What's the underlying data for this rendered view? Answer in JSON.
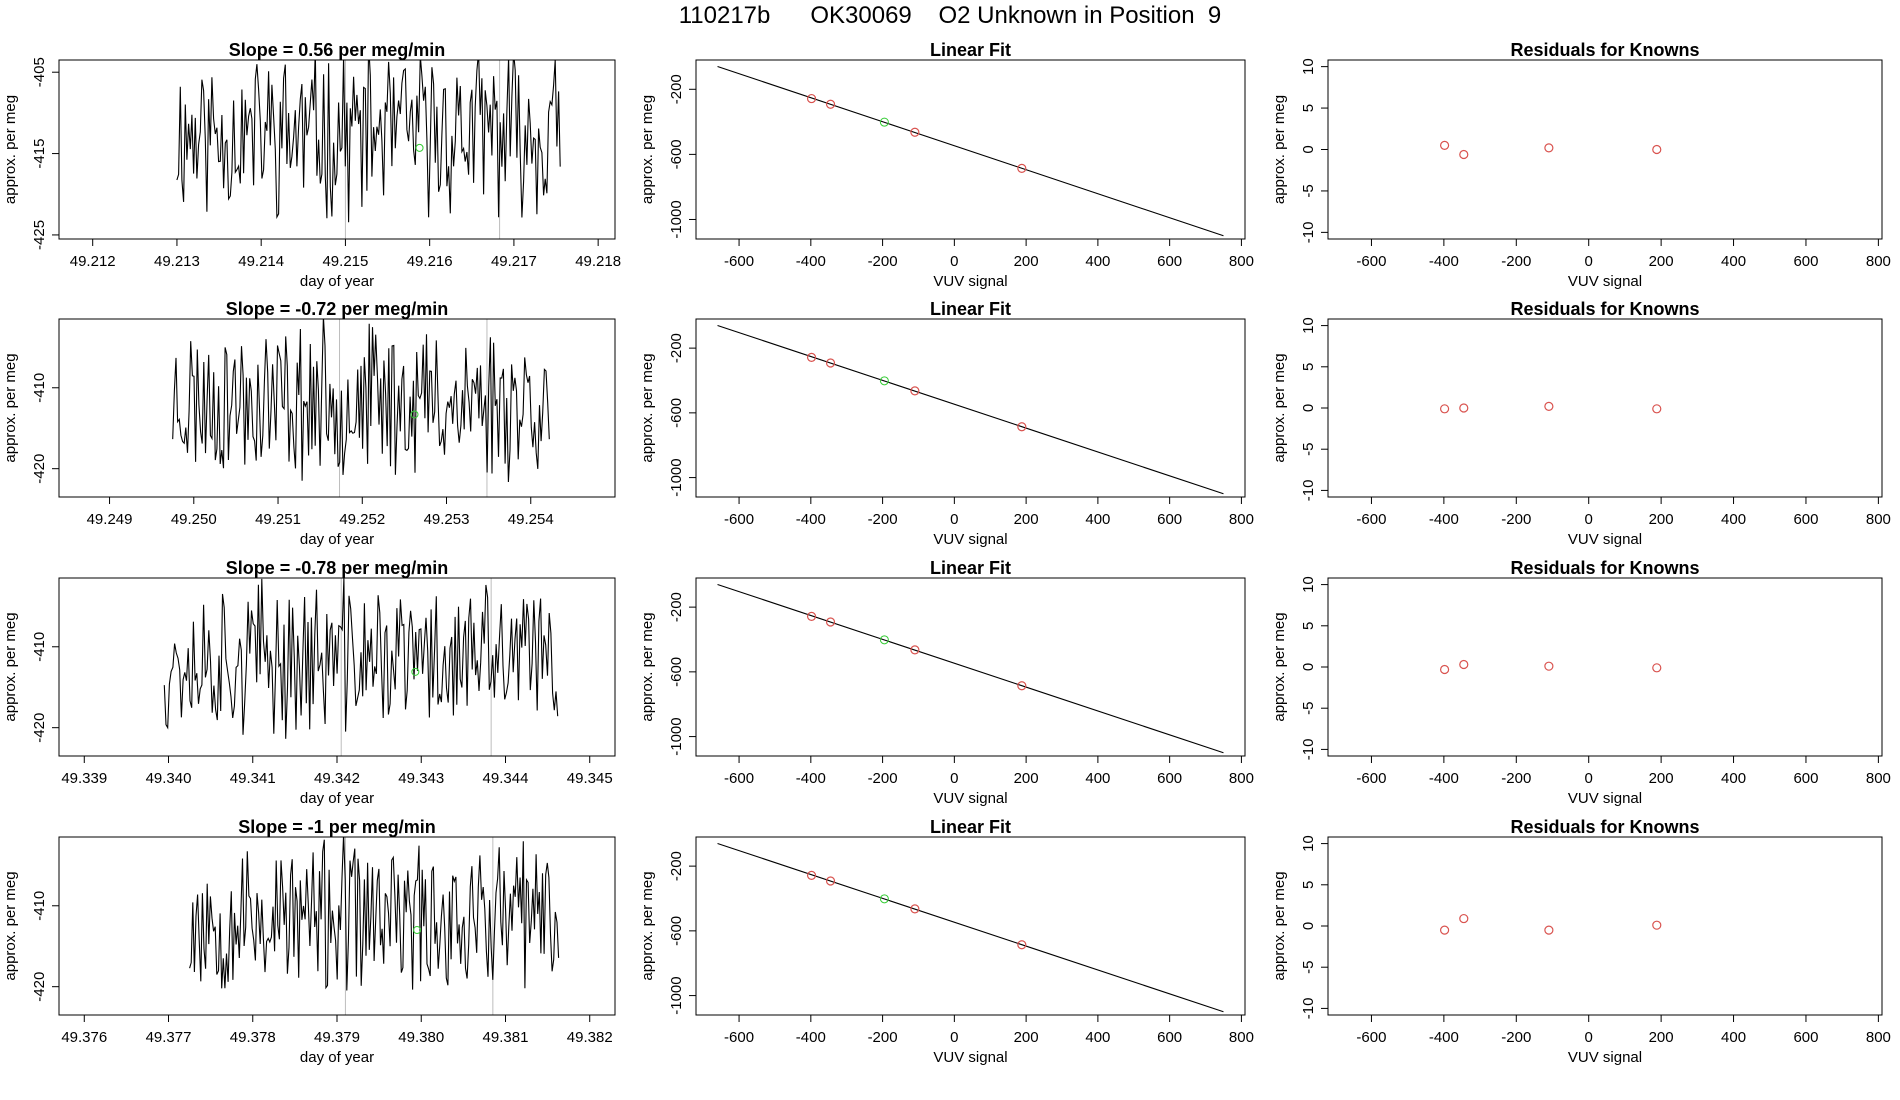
{
  "page_title": "110217b      OK30069    O2 Unknown in Position  9",
  "chart_data": [
    {
      "type": "line",
      "title": "Slope =  0.56  per meg/min",
      "xlabel": "day of year",
      "ylabel": "approx. per meg",
      "xlim": [
        49.2116,
        49.2182
      ],
      "ylim": [
        -425.5,
        -403.5
      ],
      "xticks": [
        "49.212",
        "49.213",
        "49.214",
        "49.215",
        "49.216",
        "49.217",
        "49.218"
      ],
      "yticks": [
        "-405",
        "-415",
        "-425"
      ],
      "ytick_values": [
        -405,
        -415,
        -425
      ],
      "vlines": [
        49.215,
        49.21683
      ],
      "marker": {
        "x": 49.21588,
        "y": -414.3,
        "color": "#33cc33"
      },
      "series": {
        "x_start": 49.213,
        "x_end": 49.21755,
        "seed": 11,
        "mean": -412.5,
        "amp": 8.5
      }
    },
    {
      "type": "scatter",
      "title": "Linear Fit",
      "xlabel": "VUV signal",
      "ylabel": "approx. per meg",
      "xlim": [
        -720,
        810
      ],
      "ylim": [
        -1120,
        -20
      ],
      "xticks": [
        "-600",
        "-400",
        "-200",
        "0",
        "200",
        "400",
        "600",
        "800"
      ],
      "xtick_values": [
        -600,
        -400,
        -200,
        0,
        200,
        400,
        600,
        800
      ],
      "yticks": [
        "-200",
        "-600",
        "-1000"
      ],
      "ytick_values": [
        -200,
        -600,
        -1000
      ],
      "fit_line": {
        "x": [
          -660,
          750
        ],
        "y": [
          -60,
          -1100
        ]
      },
      "points": [
        {
          "x": -398,
          "y": -257
        },
        {
          "x": -345,
          "y": -292
        },
        {
          "x": -110,
          "y": -464
        },
        {
          "x": 188,
          "y": -686
        }
      ],
      "unknown": {
        "x": -195,
        "y": -402
      }
    },
    {
      "type": "scatter",
      "title": "Residuals for Knowns",
      "xlabel": "VUV signal",
      "ylabel": "approx. per meg",
      "xlim": [
        -720,
        810
      ],
      "ylim": [
        -10.8,
        10.8
      ],
      "xticks": [
        "-600",
        "-400",
        "-200",
        "0",
        "200",
        "400",
        "600",
        "800"
      ],
      "xtick_values": [
        -600,
        -400,
        -200,
        0,
        200,
        400,
        600,
        800
      ],
      "yticks": [
        "10",
        "5",
        "0",
        "-5",
        "-10"
      ],
      "ytick_values": [
        10,
        5,
        0,
        -5,
        -10
      ],
      "points": [
        {
          "x": -398,
          "y": 0.5
        },
        {
          "x": -345,
          "y": -0.6
        },
        {
          "x": -110,
          "y": 0.2
        },
        {
          "x": 188,
          "y": 0.0
        }
      ]
    },
    {
      "type": "line",
      "title": "Slope =  -0.72  per meg/min",
      "xlabel": "day of year",
      "ylabel": "approx. per meg",
      "xlim": [
        49.2484,
        49.255
      ],
      "ylim": [
        -423.5,
        -401.5
      ],
      "xticks": [
        "49.249",
        "49.250",
        "49.251",
        "49.252",
        "49.253",
        "49.254"
      ],
      "yticks": [
        "-410",
        "-420"
      ],
      "ytick_values": [
        -410,
        -420
      ],
      "vlines": [
        49.25173,
        49.25348
      ],
      "marker": {
        "x": 49.25262,
        "y": -413.3,
        "color": "#33cc33"
      },
      "series": {
        "x_start": 49.24975,
        "x_end": 49.25422,
        "seed": 23,
        "mean": -411.5,
        "amp": 8.0
      }
    },
    {
      "type": "scatter",
      "title": "Linear Fit",
      "xlabel": "VUV signal",
      "ylabel": "approx. per meg",
      "xlim": [
        -720,
        810
      ],
      "ylim": [
        -1120,
        -20
      ],
      "xticks": [
        "-600",
        "-400",
        "-200",
        "0",
        "200",
        "400",
        "600",
        "800"
      ],
      "xtick_values": [
        -600,
        -400,
        -200,
        0,
        200,
        400,
        600,
        800
      ],
      "yticks": [
        "-200",
        "-600",
        "-1000"
      ],
      "ytick_values": [
        -200,
        -600,
        -1000
      ],
      "fit_line": {
        "x": [
          -660,
          750
        ],
        "y": [
          -60,
          -1100
        ]
      },
      "points": [
        {
          "x": -398,
          "y": -257
        },
        {
          "x": -345,
          "y": -292
        },
        {
          "x": -110,
          "y": -464
        },
        {
          "x": 188,
          "y": -686
        }
      ],
      "unknown": {
        "x": -195,
        "y": -402
      }
    },
    {
      "type": "scatter",
      "title": "Residuals for Knowns",
      "xlabel": "VUV signal",
      "ylabel": "approx. per meg",
      "xlim": [
        -720,
        810
      ],
      "ylim": [
        -10.8,
        10.8
      ],
      "xticks": [
        "-600",
        "-400",
        "-200",
        "0",
        "200",
        "400",
        "600",
        "800"
      ],
      "xtick_values": [
        -600,
        -400,
        -200,
        0,
        200,
        400,
        600,
        800
      ],
      "yticks": [
        "10",
        "5",
        "0",
        "-5",
        "-10"
      ],
      "ytick_values": [
        10,
        5,
        0,
        -5,
        -10
      ],
      "points": [
        {
          "x": -398,
          "y": -0.1
        },
        {
          "x": -345,
          "y": 0.0
        },
        {
          "x": -110,
          "y": 0.2
        },
        {
          "x": 188,
          "y": -0.1
        }
      ]
    },
    {
      "type": "line",
      "title": "Slope =  -0.78  per meg/min",
      "xlabel": "day of year",
      "ylabel": "approx. per meg",
      "xlim": [
        49.3387,
        49.3453
      ],
      "ylim": [
        -423.5,
        -401.5
      ],
      "xticks": [
        "49.339",
        "49.340",
        "49.341",
        "49.342",
        "49.343",
        "49.344",
        "49.345"
      ],
      "yticks": [
        "-410",
        "-420"
      ],
      "ytick_values": [
        -410,
        -420
      ],
      "vlines": [
        49.34205,
        49.34383
      ],
      "marker": {
        "x": 49.34293,
        "y": -413.1,
        "color": "#33cc33"
      },
      "series": {
        "x_start": 49.33995,
        "x_end": 49.34462,
        "seed": 37,
        "mean": -411.5,
        "amp": 8.0
      }
    },
    {
      "type": "scatter",
      "title": "Linear Fit",
      "xlabel": "VUV signal",
      "ylabel": "approx. per meg",
      "xlim": [
        -720,
        810
      ],
      "ylim": [
        -1120,
        -20
      ],
      "xticks": [
        "-600",
        "-400",
        "-200",
        "0",
        "200",
        "400",
        "600",
        "800"
      ],
      "xtick_values": [
        -600,
        -400,
        -200,
        0,
        200,
        400,
        600,
        800
      ],
      "yticks": [
        "-200",
        "-600",
        "-1000"
      ],
      "ytick_values": [
        -200,
        -600,
        -1000
      ],
      "fit_line": {
        "x": [
          -660,
          750
        ],
        "y": [
          -60,
          -1100
        ]
      },
      "points": [
        {
          "x": -398,
          "y": -257
        },
        {
          "x": -345,
          "y": -292
        },
        {
          "x": -110,
          "y": -464
        },
        {
          "x": 188,
          "y": -686
        }
      ],
      "unknown": {
        "x": -195,
        "y": -402
      }
    },
    {
      "type": "scatter",
      "title": "Residuals for Knowns",
      "xlabel": "VUV signal",
      "ylabel": "approx. per meg",
      "xlim": [
        -720,
        810
      ],
      "ylim": [
        -10.8,
        10.8
      ],
      "xticks": [
        "-600",
        "-400",
        "-200",
        "0",
        "200",
        "400",
        "600",
        "800"
      ],
      "xtick_values": [
        -600,
        -400,
        -200,
        0,
        200,
        400,
        600,
        800
      ],
      "yticks": [
        "10",
        "5",
        "0",
        "-5",
        "-10"
      ],
      "ytick_values": [
        10,
        5,
        0,
        -5,
        -10
      ],
      "points": [
        {
          "x": -398,
          "y": -0.3
        },
        {
          "x": -345,
          "y": 0.3
        },
        {
          "x": -110,
          "y": 0.1
        },
        {
          "x": 188,
          "y": -0.1
        }
      ]
    },
    {
      "type": "line",
      "title": "Slope =  -1  per meg/min",
      "xlabel": "day of year",
      "ylabel": "approx. per meg",
      "xlim": [
        49.3757,
        49.3823
      ],
      "ylim": [
        -423.5,
        -401.5
      ],
      "xticks": [
        "49.376",
        "49.377",
        "49.378",
        "49.379",
        "49.380",
        "49.381",
        "49.382"
      ],
      "yticks": [
        "-410",
        "-420"
      ],
      "ytick_values": [
        -410,
        -420
      ],
      "vlines": [
        49.3791,
        49.38085
      ],
      "marker": {
        "x": 49.37995,
        "y": -413.0,
        "color": "#33cc33"
      },
      "series": {
        "x_start": 49.37725,
        "x_end": 49.38163,
        "seed": 53,
        "mean": -411.5,
        "amp": 8.0
      }
    },
    {
      "type": "scatter",
      "title": "Linear Fit",
      "xlabel": "VUV signal",
      "ylabel": "approx. per meg",
      "xlim": [
        -720,
        810
      ],
      "ylim": [
        -1120,
        -20
      ],
      "xticks": [
        "-600",
        "-400",
        "-200",
        "0",
        "200",
        "400",
        "600",
        "800"
      ],
      "xtick_values": [
        -600,
        -400,
        -200,
        0,
        200,
        400,
        600,
        800
      ],
      "yticks": [
        "-200",
        "-600",
        "-1000"
      ],
      "ytick_values": [
        -200,
        -600,
        -1000
      ],
      "fit_line": {
        "x": [
          -660,
          750
        ],
        "y": [
          -60,
          -1100
        ]
      },
      "points": [
        {
          "x": -398,
          "y": -257
        },
        {
          "x": -345,
          "y": -292
        },
        {
          "x": -110,
          "y": -464
        },
        {
          "x": 188,
          "y": -686
        }
      ],
      "unknown": {
        "x": -195,
        "y": -402
      }
    },
    {
      "type": "scatter",
      "title": "Residuals for Knowns",
      "xlabel": "VUV signal",
      "ylabel": "approx. per meg",
      "xlim": [
        -720,
        810
      ],
      "ylim": [
        -10.8,
        10.8
      ],
      "xticks": [
        "-600",
        "-400",
        "-200",
        "0",
        "200",
        "400",
        "600",
        "800"
      ],
      "xtick_values": [
        -600,
        -400,
        -200,
        0,
        200,
        400,
        600,
        800
      ],
      "yticks": [
        "10",
        "5",
        "0",
        "-5",
        "-10"
      ],
      "ytick_values": [
        10,
        5,
        0,
        -5,
        -10
      ],
      "points": [
        {
          "x": -398,
          "y": -0.5
        },
        {
          "x": -345,
          "y": 0.9
        },
        {
          "x": -110,
          "y": -0.5
        },
        {
          "x": 188,
          "y": 0.1
        }
      ]
    }
  ]
}
